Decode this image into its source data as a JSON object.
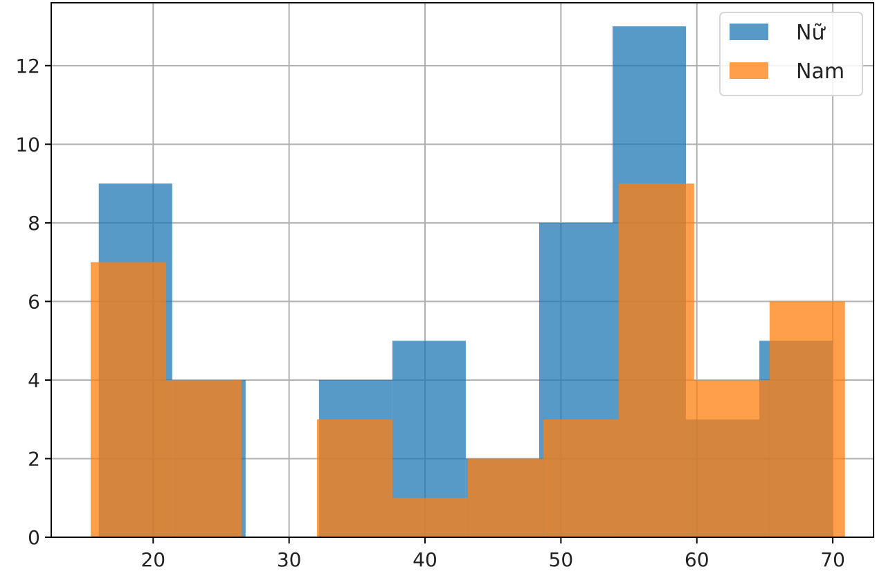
{
  "chart_data": {
    "type": "bar",
    "histogram": true,
    "title": "",
    "xlabel": "",
    "ylabel": "",
    "xlim": [
      12.5,
      73
    ],
    "ylim": [
      0,
      13.6
    ],
    "xticks": [
      20,
      30,
      40,
      50,
      60,
      70
    ],
    "yticks": [
      0,
      2,
      4,
      6,
      8,
      10,
      12
    ],
    "xtick_labels": [
      "20",
      "30",
      "40",
      "50",
      "60",
      "70"
    ],
    "ytick_labels": [
      "0",
      "2",
      "4",
      "6",
      "8",
      "10",
      "12"
    ],
    "grid": true,
    "legend_position": "top-right",
    "series": [
      {
        "name": "Nữ",
        "color": "#1f77b4",
        "bin_edges": [
          16.0,
          21.4,
          26.8,
          32.2,
          37.6,
          43.0,
          48.4,
          53.8,
          59.2,
          64.6,
          70.0
        ],
        "values": [
          9,
          4,
          0,
          4,
          5,
          2,
          8,
          13,
          3,
          5
        ]
      },
      {
        "name": "Nam",
        "color": "#ff7f0e",
        "bin_edges": [
          15.4,
          20.95,
          26.5,
          32.05,
          37.6,
          43.15,
          48.7,
          54.25,
          59.8,
          65.35,
          70.9
        ],
        "values": [
          7,
          4,
          0,
          3,
          1,
          2,
          3,
          9,
          4,
          6
        ]
      }
    ]
  }
}
